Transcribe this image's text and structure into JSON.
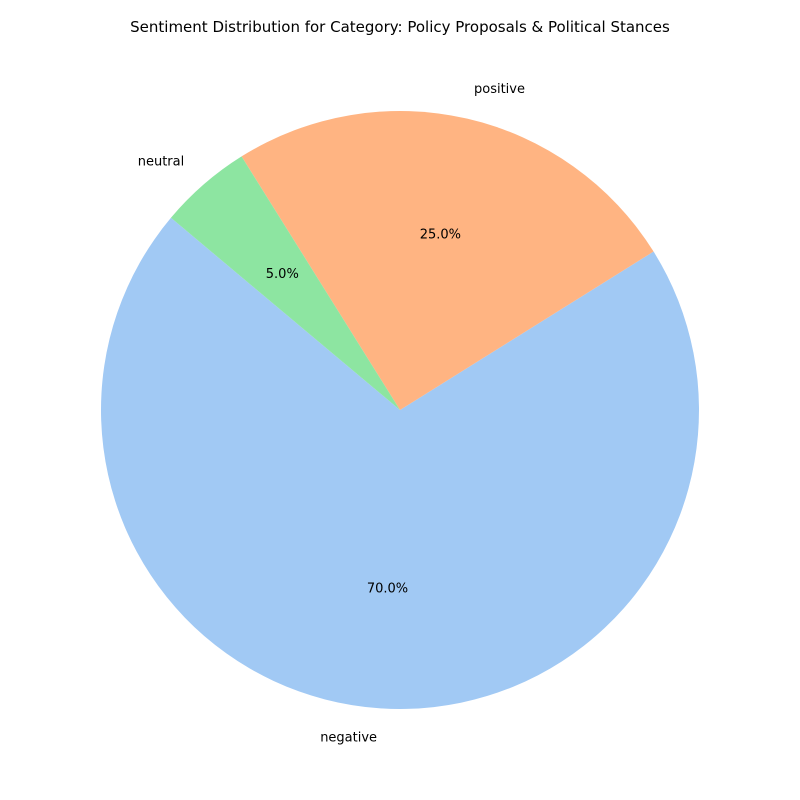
{
  "chart_data": {
    "type": "pie",
    "title": "Sentiment Distribution for Category: Policy Proposals & Political Stances",
    "start_angle_deg": 140,
    "direction": "counterclockwise",
    "slices": [
      {
        "label": "negative",
        "value": 70.0,
        "display": "70.0%",
        "color": "#a1c9f4"
      },
      {
        "label": "positive",
        "value": 25.0,
        "display": "25.0%",
        "color": "#ffb482"
      },
      {
        "label": "neutral",
        "value": 5.0,
        "display": "5.0%",
        "color": "#8de5a1"
      }
    ]
  }
}
